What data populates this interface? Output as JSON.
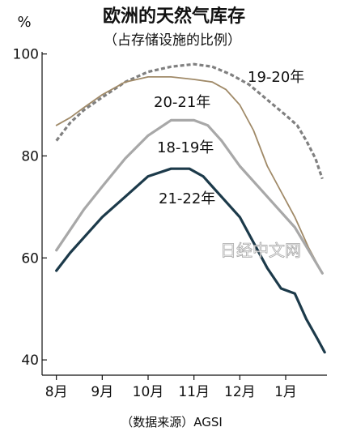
{
  "chart_data": {
    "type": "line",
    "title": "欧洲的天然气库存",
    "subtitle": "（占存储设施的比例）",
    "unit": "%",
    "source": "（数据来源）AGSI",
    "watermark": "日经中文网",
    "ylim": [
      37,
      102
    ],
    "yticks": [
      40,
      60,
      80,
      100
    ],
    "xlim": [
      -0.1,
      5.9
    ],
    "xticks": [
      {
        "label": "8月",
        "pos": 0
      },
      {
        "label": "9月",
        "pos": 1
      },
      {
        "label": "10月",
        "pos": 2
      },
      {
        "label": "11月",
        "pos": 3
      },
      {
        "label": "12月",
        "pos": 4
      },
      {
        "label": "1月",
        "pos": 5
      }
    ],
    "series": [
      {
        "name": "19-20年",
        "color": "#808080",
        "dash": true,
        "points": [
          [
            0,
            83.0
          ],
          [
            0.3,
            86.5
          ],
          [
            0.6,
            89.0
          ],
          [
            1.0,
            91.5
          ],
          [
            1.5,
            94.5
          ],
          [
            2.0,
            96.5
          ],
          [
            2.5,
            97.5
          ],
          [
            3.0,
            98.0
          ],
          [
            3.4,
            97.5
          ],
          [
            3.8,
            96.0
          ],
          [
            4.2,
            94.0
          ],
          [
            4.6,
            91.0
          ],
          [
            5.0,
            88.0
          ],
          [
            5.25,
            86.0
          ],
          [
            5.45,
            83.0
          ],
          [
            5.65,
            79.5
          ],
          [
            5.8,
            75.5
          ]
        ]
      },
      {
        "name": "20-21年",
        "color": "#a08a68",
        "dash": false,
        "points": [
          [
            0,
            86.0
          ],
          [
            0.3,
            87.5
          ],
          [
            0.6,
            89.5
          ],
          [
            1.0,
            92.0
          ],
          [
            1.5,
            94.5
          ],
          [
            2.0,
            95.5
          ],
          [
            2.5,
            95.5
          ],
          [
            3.0,
            95.0
          ],
          [
            3.4,
            94.5
          ],
          [
            3.7,
            93.0
          ],
          [
            4.0,
            90.0
          ],
          [
            4.3,
            85.0
          ],
          [
            4.6,
            78.0
          ],
          [
            4.9,
            73.0
          ],
          [
            5.2,
            68.0
          ],
          [
            5.5,
            62.0
          ],
          [
            5.8,
            57.0
          ]
        ]
      },
      {
        "name": "18-19年",
        "color": "#a8a8a8",
        "dash": false,
        "points": [
          [
            0,
            61.5
          ],
          [
            0.3,
            65.5
          ],
          [
            0.6,
            69.5
          ],
          [
            1.0,
            74.0
          ],
          [
            1.5,
            79.5
          ],
          [
            2.0,
            84.0
          ],
          [
            2.5,
            87.0
          ],
          [
            3.0,
            87.0
          ],
          [
            3.3,
            86.0
          ],
          [
            3.6,
            83.0
          ],
          [
            4.0,
            78.0
          ],
          [
            4.4,
            74.0
          ],
          [
            4.8,
            70.0
          ],
          [
            5.2,
            66.0
          ],
          [
            5.5,
            61.5
          ],
          [
            5.8,
            57.0
          ]
        ]
      },
      {
        "name": "21-22年",
        "color": "#1c3a4a",
        "dash": false,
        "points": [
          [
            0,
            57.5
          ],
          [
            0.3,
            61.0
          ],
          [
            0.6,
            64.0
          ],
          [
            1.0,
            68.0
          ],
          [
            1.5,
            72.0
          ],
          [
            2.0,
            76.0
          ],
          [
            2.5,
            77.5
          ],
          [
            2.9,
            77.5
          ],
          [
            3.2,
            76.0
          ],
          [
            3.6,
            72.0
          ],
          [
            4.0,
            68.0
          ],
          [
            4.3,
            63.0
          ],
          [
            4.6,
            58.0
          ],
          [
            4.9,
            54.0
          ],
          [
            5.2,
            53.0
          ],
          [
            5.45,
            48.0
          ],
          [
            5.7,
            44.0
          ],
          [
            5.85,
            41.5
          ]
        ]
      }
    ],
    "grid": false,
    "legend": "inline labels next to each line"
  }
}
